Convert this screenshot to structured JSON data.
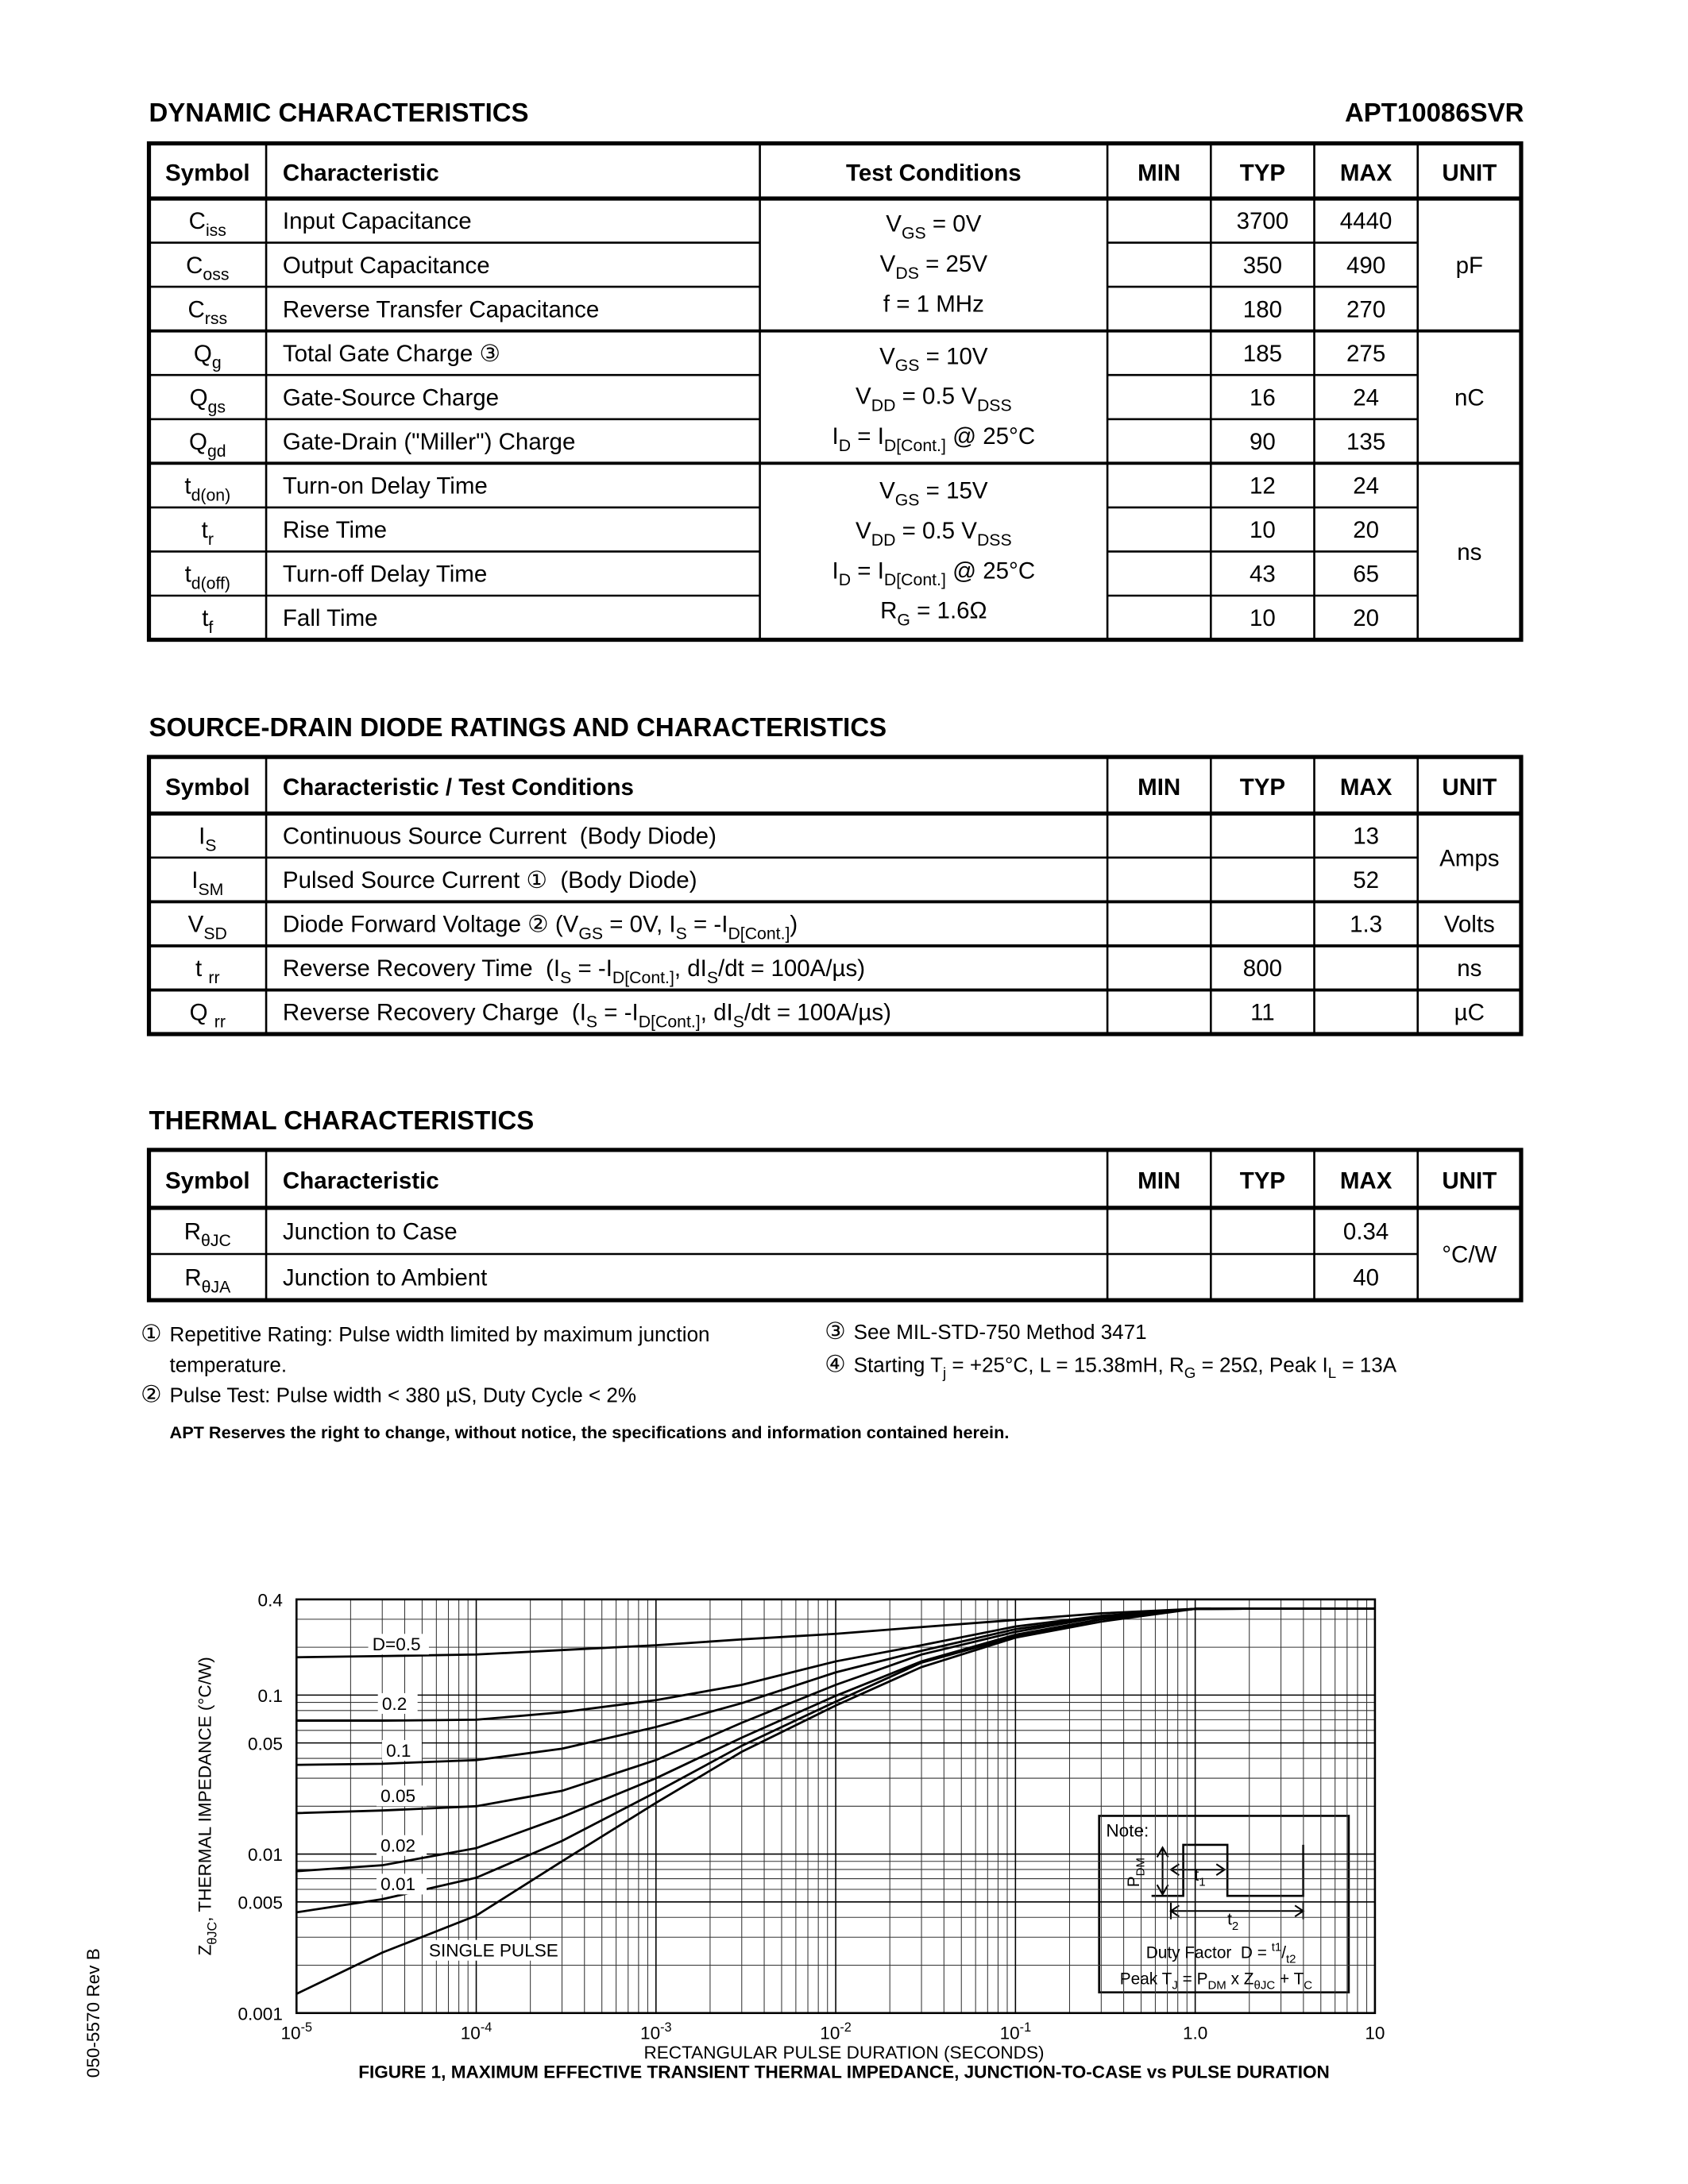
{
  "header": {
    "title": "DYNAMIC CHARACTERISTICS",
    "part_number": "APT10086SVR"
  },
  "dynamic_table": {
    "columns": [
      "Symbol",
      "Characteristic",
      "Test Conditions",
      "MIN",
      "TYP",
      "MAX",
      "UNIT"
    ],
    "groups": [
      {
        "rows": [
          {
            "symbol": [
              "C",
              {
                "sub": "iss"
              }
            ],
            "characteristic": "Input Capacitance",
            "typ": 3700,
            "max": 4440
          },
          {
            "symbol": [
              "C",
              {
                "sub": "oss"
              }
            ],
            "characteristic": "Output Capacitance",
            "typ": 350,
            "max": 490
          },
          {
            "symbol": [
              "C",
              {
                "sub": "rss"
              }
            ],
            "characteristic": "Reverse Transfer Capacitance",
            "typ": 180,
            "max": 270
          }
        ],
        "conditions": [
          [
            "V",
            {
              "sub": "GS"
            },
            " = 0V"
          ],
          [
            "V",
            {
              "sub": "DS"
            },
            " = 25V"
          ],
          "f = 1 MHz"
        ],
        "unit": "pF"
      },
      {
        "rows": [
          {
            "symbol": [
              "Q",
              {
                "sub": "g"
              }
            ],
            "characteristic": "Total Gate Charge ③",
            "typ": 185,
            "max": 275
          },
          {
            "symbol": [
              "Q",
              {
                "sub": "gs"
              }
            ],
            "characteristic": "Gate-Source Charge",
            "typ": 16,
            "max": 24
          },
          {
            "symbol": [
              "Q",
              {
                "sub": "gd"
              }
            ],
            "characteristic": "Gate-Drain (\"Miller\") Charge",
            "typ": 90,
            "max": 135
          }
        ],
        "conditions": [
          [
            "V",
            {
              "sub": "GS"
            },
            " = 10V"
          ],
          [
            "V",
            {
              "sub": "DD"
            },
            " = 0.5 V",
            {
              "sub": "DSS"
            }
          ],
          [
            "I",
            {
              "sub": "D"
            },
            " = I",
            {
              "sub": "D[Cont.]"
            },
            " @ 25°C"
          ]
        ],
        "unit": "nC"
      },
      {
        "rows": [
          {
            "symbol": [
              "t",
              {
                "sub": "d(on)"
              }
            ],
            "characteristic": "Turn-on Delay Time",
            "typ": 12,
            "max": 24
          },
          {
            "symbol": [
              "t",
              {
                "sub": "r"
              }
            ],
            "characteristic": "Rise Time",
            "typ": 10,
            "max": 20
          },
          {
            "symbol": [
              "t",
              {
                "sub": "d(off)"
              }
            ],
            "characteristic": "Turn-off Delay Time",
            "typ": 43,
            "max": 65
          },
          {
            "symbol": [
              "t",
              {
                "sub": "f"
              }
            ],
            "characteristic": "Fall Time",
            "typ": 10,
            "max": 20
          }
        ],
        "conditions": [
          [
            "V",
            {
              "sub": "GS"
            },
            " = 15V"
          ],
          [
            "V",
            {
              "sub": "DD"
            },
            " = 0.5 V",
            {
              "sub": "DSS"
            }
          ],
          [
            "I",
            {
              "sub": "D"
            },
            " = I",
            {
              "sub": "D[Cont.]"
            },
            " @ 25°C"
          ],
          [
            "R",
            {
              "sub": "G"
            },
            " = 1.6Ω"
          ]
        ],
        "unit": "ns"
      }
    ]
  },
  "diode_title": "SOURCE-DRAIN DIODE RATINGS AND CHARACTERISTICS",
  "diode_table": {
    "columns": [
      "Symbol",
      "Characteristic / Test Conditions",
      "MIN",
      "TYP",
      "MAX",
      "UNIT"
    ],
    "groups": [
      {
        "rows": [
          {
            "symbol": [
              "I",
              {
                "sub": "S"
              }
            ],
            "characteristic": "Continuous Source Current  (Body Diode)",
            "max": 13
          },
          {
            "symbol": [
              "I",
              {
                "sub": "SM"
              }
            ],
            "characteristic": "Pulsed Source Current ①  (Body Diode)",
            "max": 52
          }
        ],
        "unit": "Amps"
      },
      {
        "rows": [
          {
            "symbol": [
              "V",
              {
                "sub": "SD"
              }
            ],
            "characteristic": [
              "Diode Forward Voltage ② (V",
              {
                "sub": "GS"
              },
              " = 0V, I",
              {
                "sub": "S"
              },
              " = -I",
              {
                "sub": "D[Cont.]"
              },
              ")"
            ],
            "max": 1.3
          }
        ],
        "unit": "Volts"
      },
      {
        "rows": [
          {
            "symbol": [
              "t ",
              {
                "sub": "rr"
              }
            ],
            "characteristic": [
              "Reverse Recovery Time  (I",
              {
                "sub": "S"
              },
              " = -I",
              {
                "sub": "D[Cont.]"
              },
              ", dI",
              {
                "sub": "S"
              },
              "/dt = 100A/µs)"
            ],
            "typ": 800
          }
        ],
        "unit": "ns"
      },
      {
        "rows": [
          {
            "symbol": [
              "Q ",
              {
                "sub": "rr"
              }
            ],
            "characteristic": [
              "Reverse Recovery Charge  (I",
              {
                "sub": "S"
              },
              " = -I",
              {
                "sub": "D[Cont.]"
              },
              ", dI",
              {
                "sub": "S"
              },
              "/dt = 100A/µs)"
            ],
            "typ": 11
          }
        ],
        "unit": "µC"
      }
    ]
  },
  "thermal_title": "THERMAL CHARACTERISTICS",
  "thermal_table": {
    "columns": [
      "Symbol",
      "Characteristic",
      "MIN",
      "TYP",
      "MAX",
      "UNIT"
    ],
    "groups": [
      {
        "rows": [
          {
            "symbol": [
              "R",
              {
                "sub": "θJC"
              }
            ],
            "characteristic": "Junction to Case",
            "max": 0.34
          },
          {
            "symbol": [
              "R",
              {
                "sub": "θJA"
              }
            ],
            "characteristic": "Junction to Ambient",
            "max": 40
          }
        ],
        "unit": "°C/W"
      }
    ]
  },
  "notes": [
    {
      "mark": "①",
      "lines": [
        "Repetitive Rating: Pulse width limited by maximum junction",
        "temperature."
      ]
    },
    {
      "mark": "②",
      "lines": [
        "Pulse Test: Pulse width < 380 µS, Duty Cycle < 2%"
      ]
    },
    {
      "mark": "③",
      "lines": [
        "See MIL-STD-750 Method 3471"
      ]
    },
    {
      "mark": "④",
      "lines": [
        [
          "Starting T",
          {
            "sub": "j"
          },
          " = +25°C, L = 15.38mH, R",
          {
            "sub": "G"
          },
          " = 25Ω, Peak I",
          {
            "sub": "L"
          },
          " = 13A"
        ]
      ]
    }
  ],
  "disclaimer": "APT Reserves the right to change, without notice, the specifications and information contained herein.",
  "figure": {
    "type": "line",
    "caption": "FIGURE 1, MAXIMUM EFFECTIVE TRANSIENT THERMAL IMPEDANCE, JUNCTION-TO-CASE vs PULSE DURATION",
    "x_label": "RECTANGULAR PULSE DURATION (SECONDS)",
    "y_label": [
      "Z",
      {
        "sub": "θJC"
      },
      ", THERMAL IMPEDANCE (°C/W)"
    ],
    "xlog": true,
    "ylog": true,
    "grid": true,
    "xlim": [
      1e-05,
      10
    ],
    "ylim": [
      0.001,
      0.4
    ],
    "xticks": [
      {
        "value": 1e-05,
        "label": [
          "10",
          {
            "sup": "-5"
          }
        ]
      },
      {
        "value": 0.0001,
        "label": [
          "10",
          {
            "sup": "-4"
          }
        ]
      },
      {
        "value": 0.001,
        "label": [
          "10",
          {
            "sup": "-3"
          }
        ]
      },
      {
        "value": 0.01,
        "label": [
          "10",
          {
            "sup": "-2"
          }
        ]
      },
      {
        "value": 0.1,
        "label": [
          "10",
          {
            "sup": "-1"
          }
        ]
      },
      {
        "value": 1,
        "label": "1.0"
      },
      10
    ],
    "yticks": [
      0.4,
      0.1,
      0.05,
      0.01,
      0.005,
      0.001
    ],
    "x": [
      1e-05,
      3e-05,
      0.0001,
      0.0003,
      0.001,
      0.003,
      0.01,
      0.03,
      0.1,
      0.3,
      1,
      3,
      10
    ],
    "series": [
      {
        "name": "D=0.5",
        "color": "#000000",
        "values": [
          0.173,
          0.176,
          0.18,
          0.192,
          0.206,
          0.224,
          0.243,
          0.268,
          0.297,
          0.327,
          0.349,
          0.35,
          0.35
        ]
      },
      {
        "name": "0.2",
        "color": "#000000",
        "values": [
          0.069,
          0.069,
          0.07,
          0.078,
          0.093,
          0.116,
          0.163,
          0.206,
          0.27,
          0.315,
          0.349,
          0.35,
          0.35
        ]
      },
      {
        "name": "0.1",
        "color": "#000000",
        "values": [
          0.0364,
          0.037,
          0.039,
          0.046,
          0.063,
          0.089,
          0.139,
          0.19,
          0.26,
          0.31,
          0.349,
          0.35,
          0.35
        ]
      },
      {
        "name": "0.05",
        "color": "#000000",
        "values": [
          0.0181,
          0.0188,
          0.02,
          0.025,
          0.039,
          0.067,
          0.116,
          0.18,
          0.25,
          0.31,
          0.349,
          0.35,
          0.35
        ]
      },
      {
        "name": "0.02",
        "color": "#000000",
        "values": [
          0.0078,
          0.0085,
          0.0109,
          0.0171,
          0.03,
          0.054,
          0.099,
          0.163,
          0.24,
          0.3,
          0.349,
          0.35,
          0.35
        ]
      },
      {
        "name": "0.01",
        "color": "#000000",
        "values": [
          0.0043,
          0.0052,
          0.0071,
          0.0121,
          0.0245,
          0.048,
          0.091,
          0.16,
          0.233,
          0.3,
          0.349,
          0.35,
          0.35
        ]
      },
      {
        "name": "SINGLE PULSE",
        "color": "#000000",
        "values": [
          0.00132,
          0.0024,
          0.0041,
          0.009,
          0.021,
          0.044,
          0.086,
          0.15,
          0.23,
          0.29,
          0.349,
          0.35,
          0.35
        ]
      }
    ],
    "note": {
      "title": "Note:",
      "pdm": [
        "P",
        {
          "sub": "DM"
        }
      ],
      "t1": [
        "t",
        {
          "sub": "1"
        }
      ],
      "t2": [
        "t",
        {
          "sub": "2"
        }
      ],
      "duty_factor": [
        "Duty Factor  D = ",
        {
          "sup": "t1"
        },
        "/",
        {
          "sub": "t2"
        }
      ],
      "peak": [
        "Peak T",
        {
          "sub": "J"
        },
        " = P",
        {
          "sub": "DM"
        },
        " x Z",
        {
          "sub": "θJC"
        },
        " + T",
        {
          "sub": "C"
        }
      ]
    }
  },
  "footer": {
    "doc_number": "050-5570 Rev B"
  }
}
